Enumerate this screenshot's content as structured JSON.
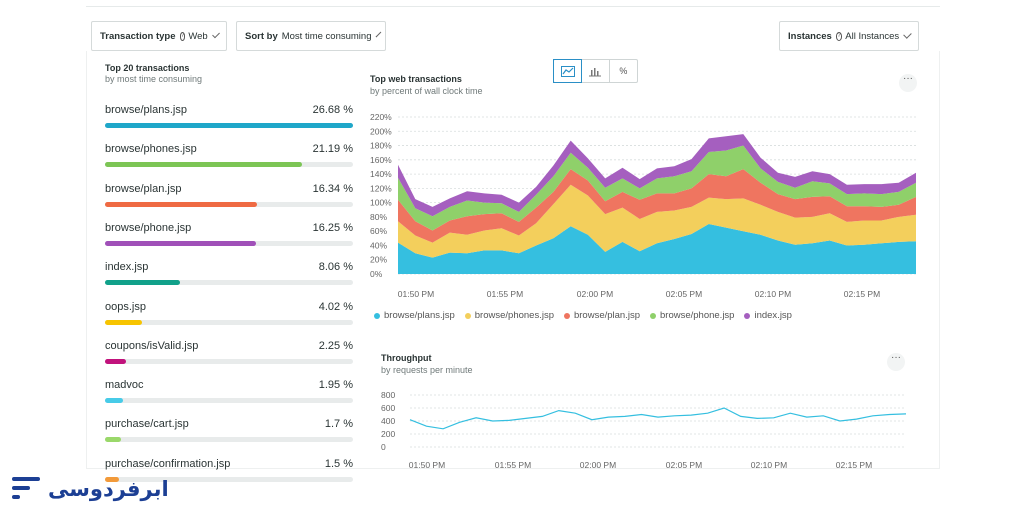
{
  "filters": {
    "transaction_type": {
      "label": "Transaction type",
      "value": "Web"
    },
    "sort_by": {
      "label": "Sort by",
      "value": "Most time consuming"
    },
    "instances": {
      "label": "Instances",
      "value": "All Instances"
    }
  },
  "left_panel": {
    "title": "Top 20 transactions",
    "subtitle": "by most time consuming",
    "items": [
      {
        "name": "browse/plans.jsp",
        "pct": "26.68 %",
        "value": 26.68,
        "color": "#1fa7c9"
      },
      {
        "name": "browse/phones.jsp",
        "pct": "21.19 %",
        "value": 21.19,
        "color": "#7cc555"
      },
      {
        "name": "browse/plan.jsp",
        "pct": "16.34 %",
        "value": 16.34,
        "color": "#ef6a43"
      },
      {
        "name": "browse/phone.jsp",
        "pct": "16.25 %",
        "value": 16.25,
        "color": "#a050b8"
      },
      {
        "name": "index.jsp",
        "pct": "8.06 %",
        "value": 8.06,
        "color": "#11a18a"
      },
      {
        "name": "oops.jsp",
        "pct": "4.02 %",
        "value": 4.02,
        "color": "#f7c400"
      },
      {
        "name": "coupons/isValid.jsp",
        "pct": "2.25 %",
        "value": 2.25,
        "color": "#c1127c"
      },
      {
        "name": "madvoc",
        "pct": "1.95 %",
        "value": 1.95,
        "color": "#47cbe8"
      },
      {
        "name": "purchase/cart.jsp",
        "pct": "1.7 %",
        "value": 1.7,
        "color": "#9ad86a"
      },
      {
        "name": "purchase/confirmation.jsp",
        "pct": "1.5 %",
        "value": 1.5,
        "color": "#f29a3a"
      }
    ]
  },
  "top_chart": {
    "title": "Top web transactions",
    "subtitle": "by percent of wall clock time",
    "toggle": [
      "area-chart-icon",
      "bar-chart-icon",
      "%"
    ],
    "more": "···"
  },
  "throughput_chart": {
    "title": "Throughput",
    "subtitle": "by requests per minute",
    "more": "···"
  },
  "chart_data": [
    {
      "type": "area",
      "title": "Top web transactions",
      "subtitle": "by percent of wall clock time",
      "ylim": [
        0,
        220
      ],
      "yticks": [
        "0%",
        "20%",
        "40%",
        "60%",
        "80%",
        "100%",
        "120%",
        "140%",
        "160%",
        "180%",
        "200%",
        "220%"
      ],
      "xticks": [
        "01:50 PM",
        "01:55 PM",
        "02:00 PM",
        "02:05 PM",
        "02:10 PM",
        "02:15 PM"
      ],
      "grid": true,
      "legend_position": "bottom",
      "series": [
        {
          "name": "browse/plans.jsp",
          "color": "#35bfe0",
          "values": [
            44,
            29,
            23,
            30,
            29,
            33,
            33,
            29,
            40,
            50,
            67,
            55,
            31,
            45,
            32,
            43,
            49,
            56,
            70,
            65,
            60,
            55,
            47,
            41,
            43,
            47,
            40,
            41,
            43,
            45,
            46
          ]
        },
        {
          "name": "browse/phones.jsp",
          "color": "#f3cf5c",
          "values": [
            30,
            25,
            21,
            28,
            26,
            28,
            31,
            25,
            31,
            48,
            58,
            55,
            53,
            48,
            45,
            44,
            40,
            38,
            37,
            40,
            46,
            42,
            40,
            38,
            37,
            38,
            33,
            34,
            32,
            35,
            37
          ]
        },
        {
          "name": "browse/plan.jsp",
          "color": "#ef7560",
          "values": [
            30,
            20,
            17,
            17,
            26,
            23,
            21,
            19,
            22,
            17,
            22,
            21,
            18,
            22,
            27,
            26,
            24,
            26,
            33,
            32,
            41,
            31,
            25,
            26,
            28,
            24,
            22,
            20,
            19,
            17,
            25
          ]
        },
        {
          "name": "browse/phone.jsp",
          "color": "#8fd06a",
          "values": [
            31,
            18,
            20,
            19,
            22,
            16,
            14,
            14,
            18,
            22,
            23,
            18,
            19,
            19,
            16,
            21,
            24,
            24,
            31,
            36,
            33,
            20,
            17,
            16,
            22,
            18,
            17,
            18,
            18,
            18,
            20
          ]
        },
        {
          "name": "index.jsp",
          "color": "#a55fbf",
          "values": [
            18,
            13,
            13,
            12,
            13,
            13,
            12,
            13,
            11,
            15,
            17,
            13,
            13,
            15,
            13,
            14,
            14,
            17,
            19,
            20,
            16,
            15,
            13,
            15,
            14,
            13,
            13,
            13,
            14,
            13,
            14
          ]
        }
      ]
    },
    {
      "type": "line",
      "title": "Throughput",
      "subtitle": "by requests per minute",
      "ylim": [
        0,
        800
      ],
      "yticks": [
        "0",
        "200",
        "400",
        "600",
        "800"
      ],
      "xticks": [
        "01:50 PM",
        "01:55 PM",
        "02:00 PM",
        "02:05 PM",
        "02:10 PM",
        "02:15 PM"
      ],
      "grid": true,
      "series": [
        {
          "name": "Throughput",
          "color": "#35bfe0",
          "values": [
            420,
            320,
            280,
            380,
            450,
            400,
            410,
            440,
            470,
            560,
            520,
            420,
            460,
            470,
            500,
            460,
            480,
            490,
            520,
            600,
            470,
            440,
            450,
            520,
            460,
            480,
            400,
            430,
            480,
            500,
            510
          ]
        }
      ]
    }
  ],
  "brand": {
    "logo_text": "ابرفردوسی"
  }
}
